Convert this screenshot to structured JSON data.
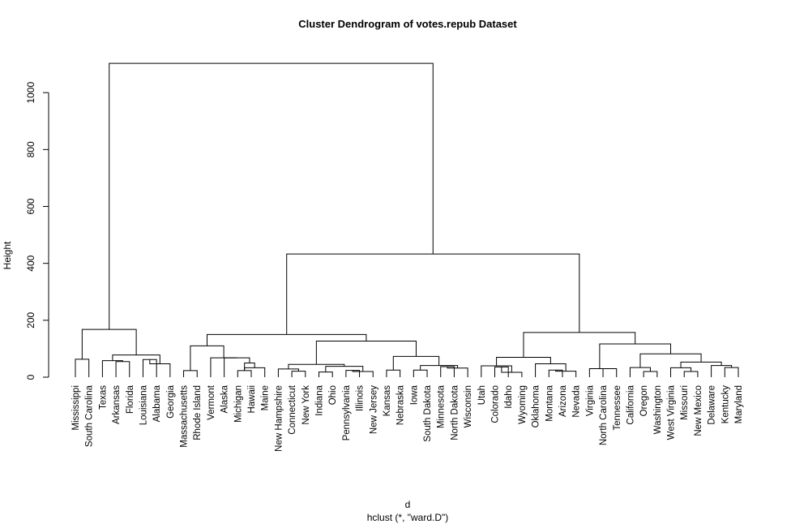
{
  "chart_data": {
    "type": "dendrogram",
    "title": "Cluster Dendrogram of votes.repub Dataset",
    "ylabel": "Height",
    "xlabel": "d",
    "sub": "hclust (*, \"ward.D\")",
    "ylim": [
      0,
      1100
    ],
    "yticks": [
      0,
      200,
      400,
      600,
      800,
      1000
    ],
    "leaves": [
      "Mississippi",
      "South Carolina",
      "Texas",
      "Arkansas",
      "Florida",
      "Louisiana",
      "Alabama",
      "Georgia",
      "Massachusetts",
      "Rhode Island",
      "Vermont",
      "Alaska",
      "Michigan",
      "Hawaii",
      "Maine",
      "New Hampshire",
      "Connecticut",
      "New York",
      "Indiana",
      "Ohio",
      "Pennsylvania",
      "Illinois",
      "New Jersey",
      "Kansas",
      "Nebraska",
      "Iowa",
      "South Dakota",
      "Minnesota",
      "North Dakota",
      "Wisconsin",
      "Utah",
      "Colorado",
      "Idaho",
      "Wyoming",
      "Oklahoma",
      "Montana",
      "Arizona",
      "Nevada",
      "Virginia",
      "North Carolina",
      "Tennessee",
      "California",
      "Oregon",
      "Washington",
      "West Virginia",
      "Missouri",
      "New Mexico",
      "Delaware",
      "Kentucky",
      "Maryland"
    ],
    "merges": [
      {
        "children": [
          "Mississippi",
          "South Carolina"
        ],
        "height": 63
      },
      {
        "children": [
          "Arkansas",
          "Florida"
        ],
        "height": 55
      },
      {
        "children": [
          "Texas",
          1
        ],
        "height": 58
      },
      {
        "children": [
          "Louisiana",
          "Alabama"
        ],
        "height": 62
      },
      {
        "children": [
          3,
          "Georgia"
        ],
        "height": 47
      },
      {
        "children": [
          2,
          4
        ],
        "height": 78
      },
      {
        "children": [
          0,
          5
        ],
        "height": 168
      },
      {
        "children": [
          "Massachusetts",
          "Rhode Island"
        ],
        "height": 23
      },
      {
        "children": [
          "Michigan",
          "Hawaii"
        ],
        "height": 23
      },
      {
        "children": [
          "Maine",
          8
        ],
        "height": 33
      },
      {
        "children": [
          8,
          9
        ],
        "height": 50
      },
      {
        "children": [
          "Alaska",
          10
        ],
        "height": 68
      },
      {
        "children": [
          "Vermont",
          11
        ],
        "height": 68
      },
      {
        "children": [
          7,
          12
        ],
        "height": 110
      },
      {
        "children": [
          "Connecticut",
          "New York"
        ],
        "height": 21
      },
      {
        "children": [
          "New Hampshire",
          14
        ],
        "height": 29
      },
      {
        "children": [
          "Indiana",
          "Ohio"
        ],
        "height": 18
      },
      {
        "children": [
          "Pennsylvania",
          "Illinois"
        ],
        "height": 24
      },
      {
        "children": [
          17,
          "New Jersey"
        ],
        "height": 20
      },
      {
        "children": [
          16,
          18
        ],
        "height": 38
      },
      {
        "children": [
          15,
          19
        ],
        "height": 45
      },
      {
        "children": [
          "Kansas",
          "Nebraska"
        ],
        "height": 25
      },
      {
        "children": [
          "Iowa",
          "South Dakota"
        ],
        "height": 25
      },
      {
        "children": [
          "Minnesota",
          "North Dakota"
        ],
        "height": 37
      },
      {
        "children": [
          23,
          "Wisconsin"
        ],
        "height": 32
      },
      {
        "children": [
          22,
          24
        ],
        "height": 41
      },
      {
        "children": [
          21,
          25
        ],
        "height": 73
      },
      {
        "children": [
          20,
          26
        ],
        "height": 127
      },
      {
        "children": [
          13,
          27
        ],
        "height": 150
      },
      {
        "children": [
          "Colorado",
          "Idaho"
        ],
        "height": 36
      },
      {
        "children": [
          29,
          "Wyoming"
        ],
        "height": 17
      },
      {
        "children": [
          "Utah",
          30
        ],
        "height": 40
      },
      {
        "children": [
          "Montana",
          "Arizona"
        ],
        "height": 25
      },
      {
        "children": [
          32,
          "Nevada"
        ],
        "height": 21
      },
      {
        "children": [
          "Oklahoma",
          33
        ],
        "height": 47
      },
      {
        "children": [
          31,
          34
        ],
        "height": 70
      },
      {
        "children": [
          "North Carolina",
          "Tennessee"
        ],
        "height": 30
      },
      {
        "children": [
          "Virginia",
          36
        ],
        "height": 30
      },
      {
        "children": [
          "Oregon",
          "Washington"
        ],
        "height": 20
      },
      {
        "children": [
          "California",
          38
        ],
        "height": 34
      },
      {
        "children": [
          "Missouri",
          "New Mexico"
        ],
        "height": 20
      },
      {
        "children": [
          "West Virginia",
          40
        ],
        "height": 33
      },
      {
        "children": [
          "Kentucky",
          "Maryland"
        ],
        "height": 34
      },
      {
        "children": [
          "Delaware",
          42
        ],
        "height": 41
      },
      {
        "children": [
          41,
          43
        ],
        "height": 53
      },
      {
        "children": [
          39,
          44
        ],
        "height": 82
      },
      {
        "children": [
          37,
          45
        ],
        "height": 117
      },
      {
        "children": [
          35,
          46
        ],
        "height": 157
      },
      {
        "children": [
          28,
          47
        ],
        "height": 433
      },
      {
        "children": [
          6,
          48
        ],
        "height": 1103
      }
    ]
  }
}
